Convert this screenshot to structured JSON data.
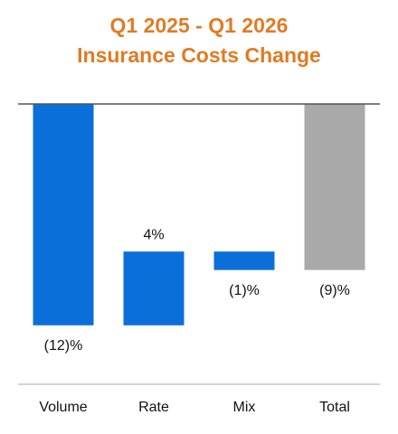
{
  "chart_data": {
    "type": "waterfall",
    "title": "Q1 2025 - Q1 2026",
    "subtitle": "Insurance Costs Change",
    "categories": [
      "Volume",
      "Rate",
      "Mix",
      "Total"
    ],
    "values": [
      -12,
      4,
      -1,
      -9
    ],
    "value_labels": [
      "(12)%",
      "4%",
      "(1)%",
      "(9)%"
    ],
    "colors": [
      "#0a6fd8",
      "#0a6fd8",
      "#0a6fd8",
      "#a9a9a9"
    ],
    "last_is_total": true,
    "ylim": [
      -15,
      0
    ]
  }
}
